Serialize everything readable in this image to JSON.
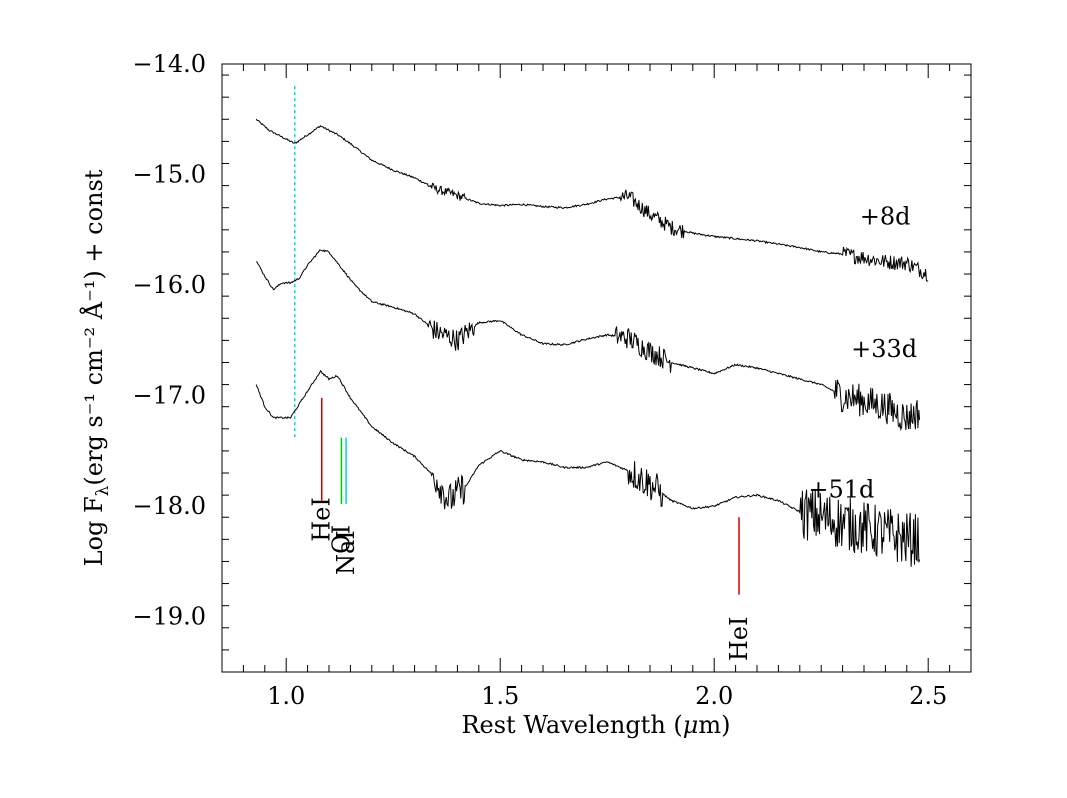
{
  "chart_data": {
    "type": "line",
    "xlabel_prefix": "Rest Wavelength (",
    "xlabel_mu": "μ",
    "xlabel_suffix": "m)",
    "ylabel_main": "Log F",
    "ylabel_sub": "λ",
    "ylabel_rest": "(erg s⁻¹ cm⁻² Å⁻¹) + const",
    "xlim": [
      0.85,
      2.6
    ],
    "ylim": [
      -19.5,
      -14.0
    ],
    "x_ticks": [
      {
        "value": 1.0,
        "label": "1.0"
      },
      {
        "value": 1.5,
        "label": "1.5"
      },
      {
        "value": 2.0,
        "label": "2.0"
      },
      {
        "value": 2.5,
        "label": "2.5"
      }
    ],
    "y_ticks": [
      {
        "value": -14.0,
        "label": "−14.0"
      },
      {
        "value": -15.0,
        "label": "−15.0"
      },
      {
        "value": -16.0,
        "label": "−16.0"
      },
      {
        "value": -17.0,
        "label": "−17.0"
      },
      {
        "value": -18.0,
        "label": "−18.0"
      },
      {
        "value": -19.0,
        "label": "−19.0"
      }
    ],
    "grid": false,
    "series": [
      {
        "name": "+8d",
        "color": "#000000",
        "noise_regions": [
          [
            1.33,
            1.42,
            0.04
          ],
          [
            1.78,
            1.93,
            0.07
          ],
          [
            2.3,
            2.51,
            0.07
          ]
        ],
        "x": [
          0.93,
          0.96,
          0.99,
          1.02,
          1.05,
          1.08,
          1.12,
          1.15,
          1.2,
          1.25,
          1.3,
          1.35,
          1.4,
          1.45,
          1.5,
          1.55,
          1.6,
          1.65,
          1.7,
          1.75,
          1.8,
          1.85,
          1.9,
          1.95,
          2.0,
          2.05,
          2.1,
          2.15,
          2.2,
          2.25,
          2.3,
          2.35,
          2.4,
          2.45,
          2.5
        ],
        "y": [
          -14.5,
          -14.6,
          -14.66,
          -14.72,
          -14.64,
          -14.56,
          -14.64,
          -14.72,
          -14.87,
          -14.96,
          -15.03,
          -15.13,
          -15.19,
          -15.26,
          -15.28,
          -15.27,
          -15.29,
          -15.3,
          -15.27,
          -15.22,
          -15.2,
          -15.36,
          -15.48,
          -15.53,
          -15.56,
          -15.58,
          -15.6,
          -15.63,
          -15.66,
          -15.7,
          -15.72,
          -15.75,
          -15.79,
          -15.8,
          -15.9
        ]
      },
      {
        "name": "+33d",
        "color": "#000000",
        "noise_regions": [
          [
            1.33,
            1.44,
            0.1
          ],
          [
            1.77,
            1.9,
            0.1
          ],
          [
            2.28,
            2.48,
            0.15
          ]
        ],
        "x": [
          0.93,
          0.95,
          0.97,
          0.99,
          1.01,
          1.03,
          1.05,
          1.08,
          1.1,
          1.13,
          1.16,
          1.2,
          1.25,
          1.3,
          1.35,
          1.4,
          1.45,
          1.5,
          1.55,
          1.6,
          1.65,
          1.7,
          1.75,
          1.8,
          1.85,
          1.9,
          1.95,
          2.0,
          2.05,
          2.1,
          2.15,
          2.2,
          2.25,
          2.3,
          2.35,
          2.4,
          2.45,
          2.48
        ],
        "y": [
          -15.78,
          -15.92,
          -16.04,
          -15.98,
          -15.98,
          -15.94,
          -15.82,
          -15.68,
          -15.7,
          -15.85,
          -16.0,
          -16.15,
          -16.2,
          -16.26,
          -16.42,
          -16.5,
          -16.34,
          -16.32,
          -16.45,
          -16.53,
          -16.54,
          -16.49,
          -16.45,
          -16.48,
          -16.6,
          -16.7,
          -16.75,
          -16.8,
          -16.72,
          -16.75,
          -16.8,
          -16.85,
          -16.9,
          -17.0,
          -17.05,
          -17.1,
          -17.2,
          -17.15
        ]
      },
      {
        "name": "+51d",
        "color": "#000000",
        "noise_regions": [
          [
            1.34,
            1.42,
            0.15
          ],
          [
            1.8,
            1.88,
            0.15
          ],
          [
            2.2,
            2.48,
            0.25
          ]
        ],
        "x": [
          0.93,
          0.95,
          0.97,
          0.99,
          1.01,
          1.03,
          1.06,
          1.08,
          1.1,
          1.12,
          1.15,
          1.2,
          1.25,
          1.3,
          1.35,
          1.38,
          1.42,
          1.45,
          1.5,
          1.55,
          1.6,
          1.65,
          1.7,
          1.75,
          1.8,
          1.85,
          1.9,
          1.95,
          2.0,
          2.05,
          2.1,
          2.15,
          2.2,
          2.25,
          2.3,
          2.35,
          2.4,
          2.45,
          2.48
        ],
        "y": [
          -16.9,
          -17.1,
          -17.2,
          -17.2,
          -17.2,
          -17.08,
          -16.9,
          -16.78,
          -16.85,
          -16.82,
          -17.02,
          -17.28,
          -17.43,
          -17.55,
          -17.75,
          -17.95,
          -17.82,
          -17.63,
          -17.5,
          -17.58,
          -17.6,
          -17.65,
          -17.65,
          -17.6,
          -17.68,
          -17.8,
          -17.95,
          -18.02,
          -18.0,
          -17.92,
          -17.9,
          -17.95,
          -18.05,
          -18.1,
          -18.15,
          -18.2,
          -18.25,
          -18.3,
          -18.3
        ]
      }
    ],
    "series_labels": [
      {
        "text": "+8d",
        "x": 2.34,
        "y": -15.45
      },
      {
        "text": "+33d",
        "x": 2.32,
        "y": -16.65
      },
      {
        "text": "+51d",
        "x": 2.22,
        "y": -17.92
      }
    ],
    "reference_line": {
      "x": 1.02,
      "y_top": -14.2,
      "y_bottom": -17.4,
      "color": "#00d8e8",
      "style": "dotted"
    },
    "line_ids": [
      {
        "text": "HeI",
        "color": "#cc0000",
        "x": 1.083,
        "y_top": -17.02,
        "y_bottom": -17.95,
        "label_y": -18.12
      },
      {
        "text": "OI",
        "color": "#00cc00",
        "x": 1.129,
        "y_top": -17.38,
        "y_bottom": -17.98,
        "label_y": -18.3
      },
      {
        "text": "NaI",
        "color": "#00d8e8",
        "x": 1.14,
        "y_top": -17.38,
        "y_bottom": -17.98,
        "label_y": -18.42
      },
      {
        "text": "HeI",
        "color": "#cc0000",
        "x": 2.058,
        "y_top": -18.1,
        "y_bottom": -18.8,
        "label_y": -19.2
      }
    ]
  }
}
